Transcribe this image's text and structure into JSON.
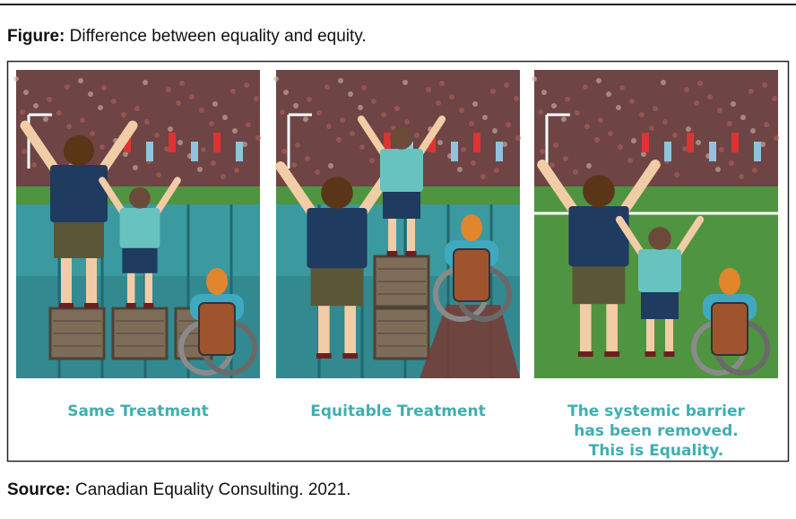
{
  "figure": {
    "label": "Figure:",
    "caption": "Difference between equality and equity."
  },
  "panels": [
    {
      "caption_lines": [
        "Same Treatment"
      ]
    },
    {
      "caption_lines": [
        "Equitable Treatment"
      ]
    },
    {
      "caption_lines": [
        "The systemic barrier",
        "has been removed.",
        "This is Equality."
      ]
    }
  ],
  "source": {
    "label": "Source:",
    "text": "Canadian Equality Consulting. 2021."
  }
}
